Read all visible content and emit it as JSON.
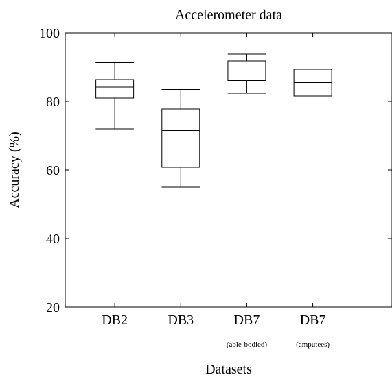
{
  "chart_data": {
    "type": "box",
    "title": "Accelerometer data",
    "xlabel": "Datasets",
    "ylabel": "Accuracy (%)",
    "ylim": [
      20,
      100
    ],
    "yticks": [
      20,
      40,
      60,
      80,
      100
    ],
    "grid": false,
    "categories": [
      {
        "label": "DB2",
        "sublabel": ""
      },
      {
        "label": "DB3",
        "sublabel": ""
      },
      {
        "label": "DB7",
        "sublabel": "(able-bodied)"
      },
      {
        "label": "DB7",
        "sublabel": "(amputees)"
      }
    ],
    "boxes": [
      {
        "min": 72.0,
        "q1": 81.0,
        "median": 84.2,
        "q3": 86.4,
        "max": 91.3
      },
      {
        "min": 55.0,
        "q1": 60.8,
        "median": 71.5,
        "q3": 77.8,
        "max": 83.5
      },
      {
        "min": 82.4,
        "q1": 86.1,
        "median": 90.3,
        "q3": 91.8,
        "max": 93.8
      },
      {
        "min": 81.6,
        "q1": 81.6,
        "median": 85.5,
        "q3": 89.4,
        "max": 89.4
      }
    ]
  }
}
